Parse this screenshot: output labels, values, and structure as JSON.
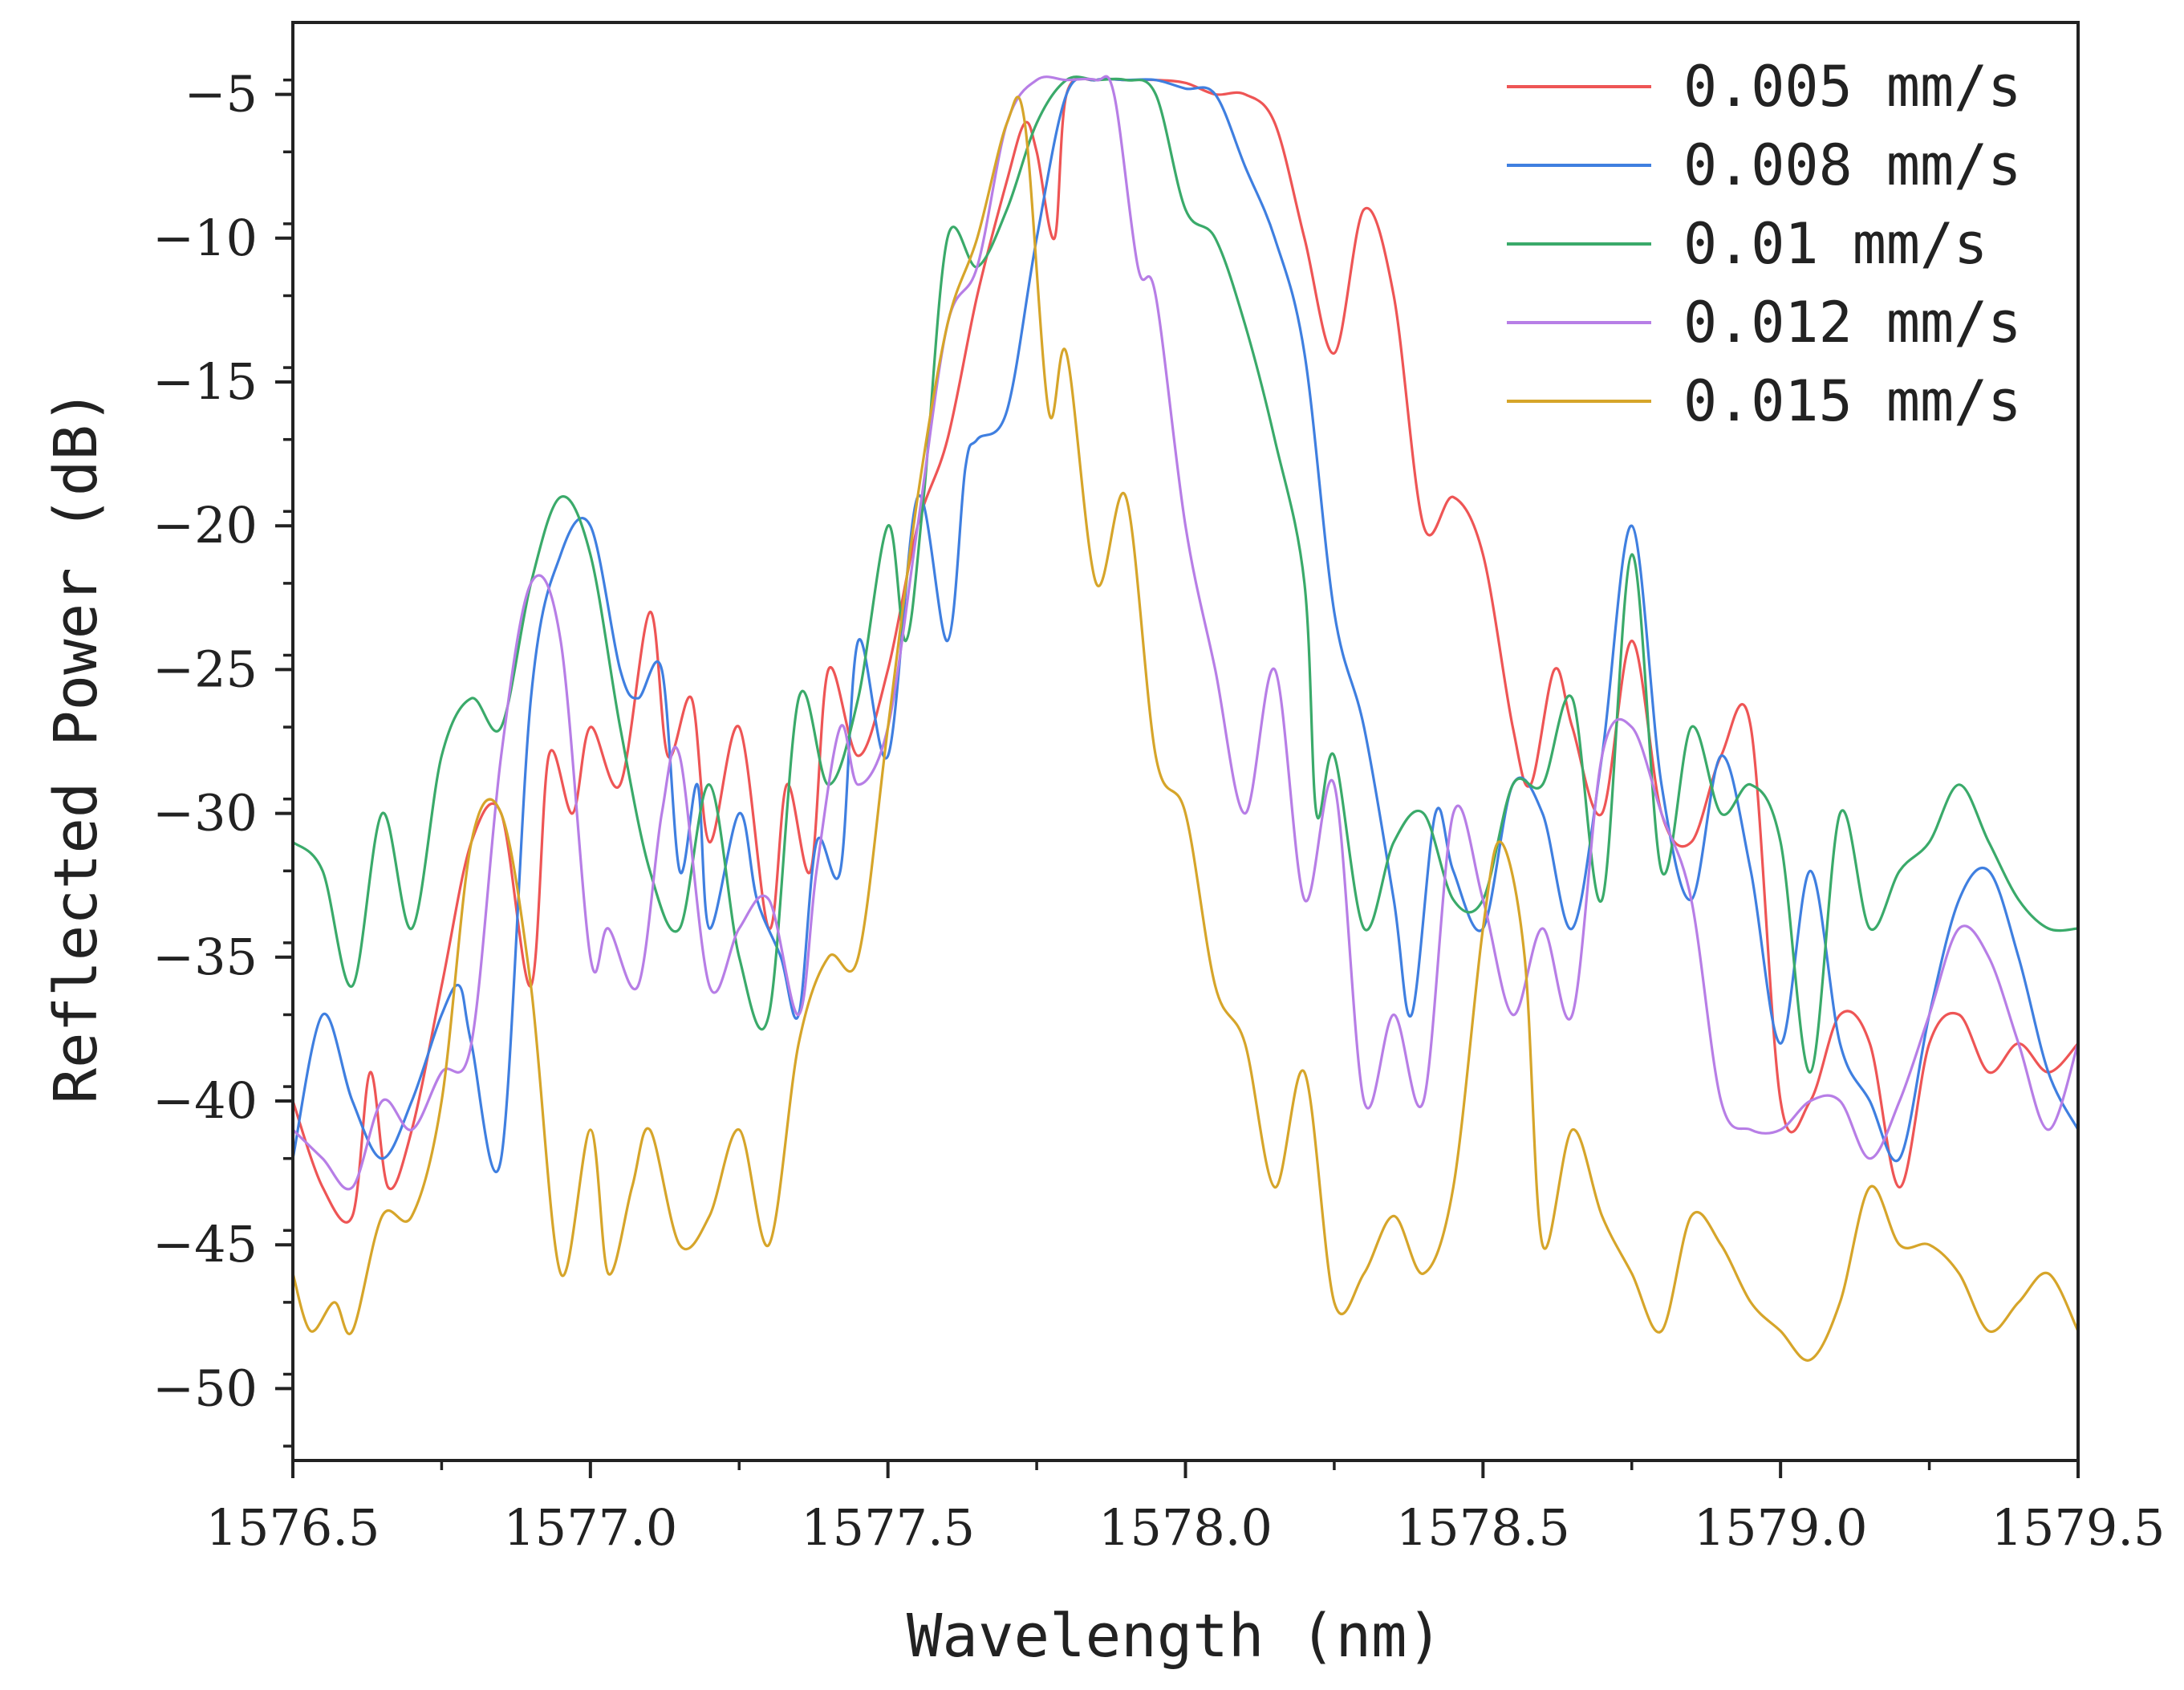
{
  "chart_data": {
    "type": "line",
    "title": "",
    "xlabel": "Wavelength (nm)",
    "ylabel": "Reflected Power (dB)",
    "xlim": [
      1576.5,
      1579.5
    ],
    "ylim": [
      -52.5,
      -2.5
    ],
    "xticks": [
      1576.5,
      1577.0,
      1577.5,
      1578.0,
      1578.5,
      1579.0,
      1579.5
    ],
    "xtick_labels": [
      "1576.5",
      "1577.0",
      "1577.5",
      "1578.0",
      "1578.5",
      "1579.0",
      "1579.5"
    ],
    "yticks": [
      -5,
      -10,
      -15,
      -20,
      -25,
      -30,
      -35,
      -40,
      -45,
      -50
    ],
    "ytick_labels": [
      "-5",
      "-10",
      "-15",
      "-20",
      "-25",
      "-30",
      "-35",
      "-40",
      "-45",
      "-50"
    ],
    "grid": false,
    "legend_position": "top-right",
    "series": [
      {
        "name": "0.005 mm/s",
        "color": "#ee5555",
        "x": [
          1576.5,
          1576.55,
          1576.6,
          1576.63,
          1576.66,
          1576.7,
          1576.75,
          1576.8,
          1576.85,
          1576.9,
          1576.93,
          1576.97,
          1577.0,
          1577.05,
          1577.1,
          1577.13,
          1577.17,
          1577.2,
          1577.25,
          1577.3,
          1577.33,
          1577.37,
          1577.4,
          1577.45,
          1577.5,
          1577.55,
          1577.6,
          1577.65,
          1577.7,
          1577.73,
          1577.75,
          1577.78,
          1577.8,
          1577.85,
          1577.9,
          1577.95,
          1578.0,
          1578.05,
          1578.1,
          1578.15,
          1578.2,
          1578.25,
          1578.3,
          1578.35,
          1578.4,
          1578.45,
          1578.5,
          1578.55,
          1578.58,
          1578.62,
          1578.65,
          1578.7,
          1578.75,
          1578.8,
          1578.85,
          1578.9,
          1578.95,
          1579.0,
          1579.05,
          1579.1,
          1579.15,
          1579.2,
          1579.25,
          1579.3,
          1579.35,
          1579.4,
          1579.45,
          1579.5
        ],
        "y": [
          -40,
          -43,
          -44,
          -39,
          -43,
          -41,
          -36,
          -31,
          -30,
          -36,
          -28,
          -30,
          -27,
          -29,
          -23,
          -28,
          -26,
          -31,
          -27,
          -34,
          -29,
          -32,
          -25,
          -28,
          -25,
          -20,
          -17,
          -12,
          -8,
          -6,
          -7,
          -10,
          -5,
          -4.5,
          -4.5,
          -4.5,
          -4.6,
          -5,
          -5,
          -6,
          -10,
          -14,
          -9,
          -12,
          -20,
          -19,
          -21,
          -27,
          -29,
          -25,
          -27,
          -30,
          -24,
          -30,
          -31,
          -28,
          -27,
          -40,
          -40,
          -37,
          -38,
          -43,
          -38,
          -37,
          -39,
          -38,
          -39,
          -38
        ]
      },
      {
        "name": "0.008 mm/s",
        "color": "#3f7fe0",
        "x": [
          1576.5,
          1576.55,
          1576.6,
          1576.65,
          1576.7,
          1576.75,
          1576.78,
          1576.8,
          1576.85,
          1576.9,
          1576.95,
          1577.0,
          1577.05,
          1577.08,
          1577.12,
          1577.15,
          1577.18,
          1577.2,
          1577.25,
          1577.28,
          1577.32,
          1577.35,
          1577.38,
          1577.42,
          1577.45,
          1577.5,
          1577.55,
          1577.6,
          1577.63,
          1577.65,
          1577.7,
          1577.75,
          1577.8,
          1577.85,
          1577.9,
          1577.95,
          1578.0,
          1578.05,
          1578.1,
          1578.15,
          1578.2,
          1578.25,
          1578.3,
          1578.35,
          1578.38,
          1578.42,
          1578.45,
          1578.5,
          1578.55,
          1578.6,
          1578.65,
          1578.7,
          1578.75,
          1578.8,
          1578.85,
          1578.9,
          1578.95,
          1579.0,
          1579.05,
          1579.1,
          1579.15,
          1579.2,
          1579.25,
          1579.3,
          1579.35,
          1579.4,
          1579.45,
          1579.5
        ],
        "y": [
          -42,
          -37,
          -40,
          -42,
          -40,
          -37,
          -36,
          -38,
          -42,
          -26,
          -21,
          -20,
          -25,
          -26,
          -25,
          -32,
          -29,
          -34,
          -30,
          -33,
          -35,
          -37,
          -31,
          -32,
          -24,
          -28,
          -19,
          -24,
          -18,
          -17,
          -16,
          -10,
          -5,
          -4.5,
          -4.5,
          -4.5,
          -4.8,
          -5,
          -7.5,
          -10,
          -14,
          -23,
          -27,
          -33,
          -37,
          -30,
          -32,
          -34,
          -29,
          -30,
          -34,
          -28,
          -20,
          -29,
          -33,
          -28,
          -32,
          -38,
          -32,
          -38,
          -40,
          -42,
          -37,
          -33,
          -32,
          -35,
          -39,
          -41
        ]
      },
      {
        "name": "0.01 mm/s",
        "color": "#3aaa6a",
        "x": [
          1576.5,
          1576.55,
          1576.6,
          1576.65,
          1576.7,
          1576.75,
          1576.8,
          1576.85,
          1576.9,
          1576.95,
          1577.0,
          1577.05,
          1577.1,
          1577.15,
          1577.2,
          1577.25,
          1577.3,
          1577.35,
          1577.4,
          1577.45,
          1577.5,
          1577.53,
          1577.56,
          1577.6,
          1577.65,
          1577.7,
          1577.75,
          1577.8,
          1577.85,
          1577.9,
          1577.95,
          1578.0,
          1578.05,
          1578.1,
          1578.15,
          1578.2,
          1578.22,
          1578.25,
          1578.3,
          1578.35,
          1578.4,
          1578.45,
          1578.5,
          1578.55,
          1578.6,
          1578.65,
          1578.7,
          1578.75,
          1578.8,
          1578.85,
          1578.9,
          1578.95,
          1579.0,
          1579.05,
          1579.1,
          1579.15,
          1579.2,
          1579.25,
          1579.3,
          1579.35,
          1579.4,
          1579.45,
          1579.5
        ],
        "y": [
          -31,
          -32,
          -36,
          -30,
          -34,
          -28,
          -26,
          -27,
          -22,
          -19,
          -21,
          -27,
          -32,
          -34,
          -29,
          -35,
          -37,
          -26,
          -29,
          -26,
          -20,
          -24,
          -19,
          -10,
          -11,
          -9,
          -6,
          -4.5,
          -4.5,
          -4.5,
          -5,
          -9,
          -10,
          -13,
          -17,
          -22,
          -30,
          -28,
          -34,
          -31,
          -30,
          -33,
          -33,
          -29,
          -29,
          -26,
          -33,
          -21,
          -32,
          -27,
          -30,
          -29,
          -31,
          -39,
          -30,
          -34,
          -32,
          -31,
          -29,
          -31,
          -33,
          -34,
          -34
        ]
      },
      {
        "name": "0.012 mm/s",
        "color": "#b77ee6",
        "x": [
          1576.5,
          1576.55,
          1576.6,
          1576.65,
          1576.7,
          1576.75,
          1576.8,
          1576.85,
          1576.9,
          1576.95,
          1577.0,
          1577.03,
          1577.08,
          1577.12,
          1577.15,
          1577.2,
          1577.25,
          1577.3,
          1577.35,
          1577.38,
          1577.42,
          1577.45,
          1577.5,
          1577.55,
          1577.6,
          1577.65,
          1577.7,
          1577.75,
          1577.8,
          1577.85,
          1577.88,
          1577.92,
          1577.95,
          1578.0,
          1578.05,
          1578.1,
          1578.15,
          1578.2,
          1578.25,
          1578.3,
          1578.35,
          1578.4,
          1578.45,
          1578.5,
          1578.55,
          1578.6,
          1578.65,
          1578.7,
          1578.75,
          1578.8,
          1578.85,
          1578.9,
          1578.95,
          1579.0,
          1579.05,
          1579.1,
          1579.15,
          1579.2,
          1579.25,
          1579.3,
          1579.35,
          1579.4,
          1579.45,
          1579.5
        ],
        "y": [
          -41,
          -42,
          -43,
          -40,
          -41,
          -39,
          -38,
          -28,
          -22,
          -24,
          -35,
          -34,
          -36,
          -30,
          -28,
          -36,
          -34,
          -33,
          -37,
          -32,
          -27,
          -29,
          -27,
          -20,
          -13,
          -11,
          -6,
          -4.5,
          -4.5,
          -4.5,
          -5,
          -11,
          -12,
          -20,
          -25,
          -30,
          -25,
          -33,
          -29,
          -40,
          -37,
          -40,
          -30,
          -33,
          -37,
          -34,
          -37,
          -28,
          -27,
          -30,
          -33,
          -40,
          -41,
          -41,
          -40,
          -40,
          -42,
          -40,
          -37,
          -34,
          -35,
          -38,
          -41,
          -38
        ]
      },
      {
        "name": "0.015 mm/s",
        "color": "#d6a52a",
        "x": [
          1576.5,
          1576.53,
          1576.57,
          1576.6,
          1576.65,
          1576.7,
          1576.75,
          1576.8,
          1576.85,
          1576.9,
          1576.95,
          1577.0,
          1577.03,
          1577.07,
          1577.1,
          1577.15,
          1577.2,
          1577.25,
          1577.3,
          1577.35,
          1577.4,
          1577.45,
          1577.5,
          1577.55,
          1577.6,
          1577.65,
          1577.7,
          1577.73,
          1577.77,
          1577.8,
          1577.85,
          1577.9,
          1577.95,
          1578.0,
          1578.05,
          1578.1,
          1578.15,
          1578.2,
          1578.25,
          1578.3,
          1578.35,
          1578.4,
          1578.45,
          1578.5,
          1578.53,
          1578.57,
          1578.6,
          1578.65,
          1578.7,
          1578.75,
          1578.8,
          1578.85,
          1578.9,
          1578.95,
          1579.0,
          1579.05,
          1579.1,
          1579.15,
          1579.2,
          1579.25,
          1579.3,
          1579.35,
          1579.4,
          1579.45,
          1579.5
        ],
        "y": [
          -46,
          -48,
          -47,
          -48,
          -44,
          -44,
          -40,
          -31,
          -30,
          -36,
          -46,
          -41,
          -46,
          -43,
          -41,
          -45,
          -44,
          -41,
          -45,
          -38,
          -35,
          -35,
          -27,
          -19,
          -13,
          -10,
          -6,
          -6,
          -16,
          -14,
          -22,
          -19,
          -28,
          -30,
          -36,
          -38,
          -43,
          -39,
          -47,
          -46,
          -44,
          -46,
          -43,
          -34,
          -31,
          -35,
          -45,
          -41,
          -44,
          -46,
          -48,
          -44,
          -45,
          -47,
          -48,
          -49,
          -47,
          -43,
          -45,
          -45,
          -46,
          -48,
          -47,
          -46,
          -48
        ]
      }
    ]
  }
}
